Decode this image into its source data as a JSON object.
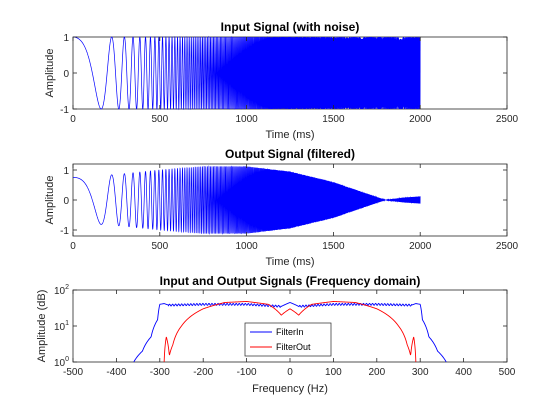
{
  "chart_data": [
    {
      "type": "line",
      "title": "Input Signal (with noise)",
      "xlabel": "Time (ms)",
      "ylabel": "Amplitude",
      "xlim": [
        0,
        2500
      ],
      "ylim": [
        -1,
        1
      ],
      "xticks": [
        0,
        500,
        1000,
        1500,
        2000,
        2500
      ],
      "yticks": [
        -1,
        0,
        1
      ],
      "grid": false,
      "series": [
        {
          "color": "#0000ff",
          "description": "chirp, amplitude 1",
          "x": [
            0,
            500,
            1000,
            1500,
            2000
          ],
          "envelope": [
            1,
            1,
            1,
            1,
            1
          ]
        }
      ]
    },
    {
      "type": "line",
      "title": "Output Signal (filtered)",
      "xlabel": "Time (ms)",
      "ylabel": "Amplitude",
      "xlim": [
        0,
        2500
      ],
      "ylim": [
        -1.2,
        1.2
      ],
      "xticks": [
        0,
        500,
        1000,
        1500,
        2000,
        2500
      ],
      "yticks": [
        -1,
        0,
        1
      ],
      "grid": false,
      "series": [
        {
          "color": "#0000ff",
          "x": [
            0,
            250,
            500,
            750,
            1000,
            1250,
            1500,
            1700,
            1800,
            1900,
            2000
          ],
          "envelope": [
            0.75,
            0.85,
            1.0,
            1.12,
            1.12,
            0.95,
            0.6,
            0.2,
            0.0,
            0.08,
            0.12
          ]
        }
      ]
    },
    {
      "type": "line",
      "title": "Input and Output Signals (Frequency domain)",
      "xlabel": "Frequency (Hz)",
      "ylabel": "Amplitude (dB)",
      "xlim": [
        -500,
        500
      ],
      "ylim": [
        1,
        100
      ],
      "yscale": "log",
      "xticks": [
        -500,
        -400,
        -300,
        -200,
        -100,
        0,
        100,
        200,
        300,
        400,
        500
      ],
      "yticks": [
        1,
        10,
        100
      ],
      "ytick_labels": [
        "10^0",
        "10^1",
        "10^2"
      ],
      "legend": "bottom-center",
      "series": [
        {
          "name": "FilterIn",
          "color": "#0000ff",
          "x": [
            -360,
            -340,
            -320,
            -305,
            -300,
            -290,
            -280,
            -200,
            -100,
            -20,
            0,
            20,
            100,
            200,
            280,
            290,
            300,
            305,
            320,
            340,
            360
          ],
          "y": [
            1,
            2,
            5,
            15,
            40,
            42,
            38,
            40,
            40,
            35,
            45,
            35,
            40,
            40,
            38,
            42,
            40,
            15,
            5,
            2,
            1
          ]
        },
        {
          "name": "FilterOut",
          "color": "#ff0000",
          "x": [
            -290,
            -285,
            -278,
            -270,
            -250,
            -200,
            -150,
            -100,
            -50,
            -20,
            0,
            20,
            50,
            100,
            150,
            200,
            250,
            270,
            278,
            285,
            290
          ],
          "y": [
            1,
            5,
            1.5,
            3,
            10,
            30,
            45,
            48,
            40,
            20,
            30,
            20,
            40,
            48,
            45,
            30,
            10,
            3,
            1.5,
            5,
            1
          ]
        }
      ]
    }
  ]
}
